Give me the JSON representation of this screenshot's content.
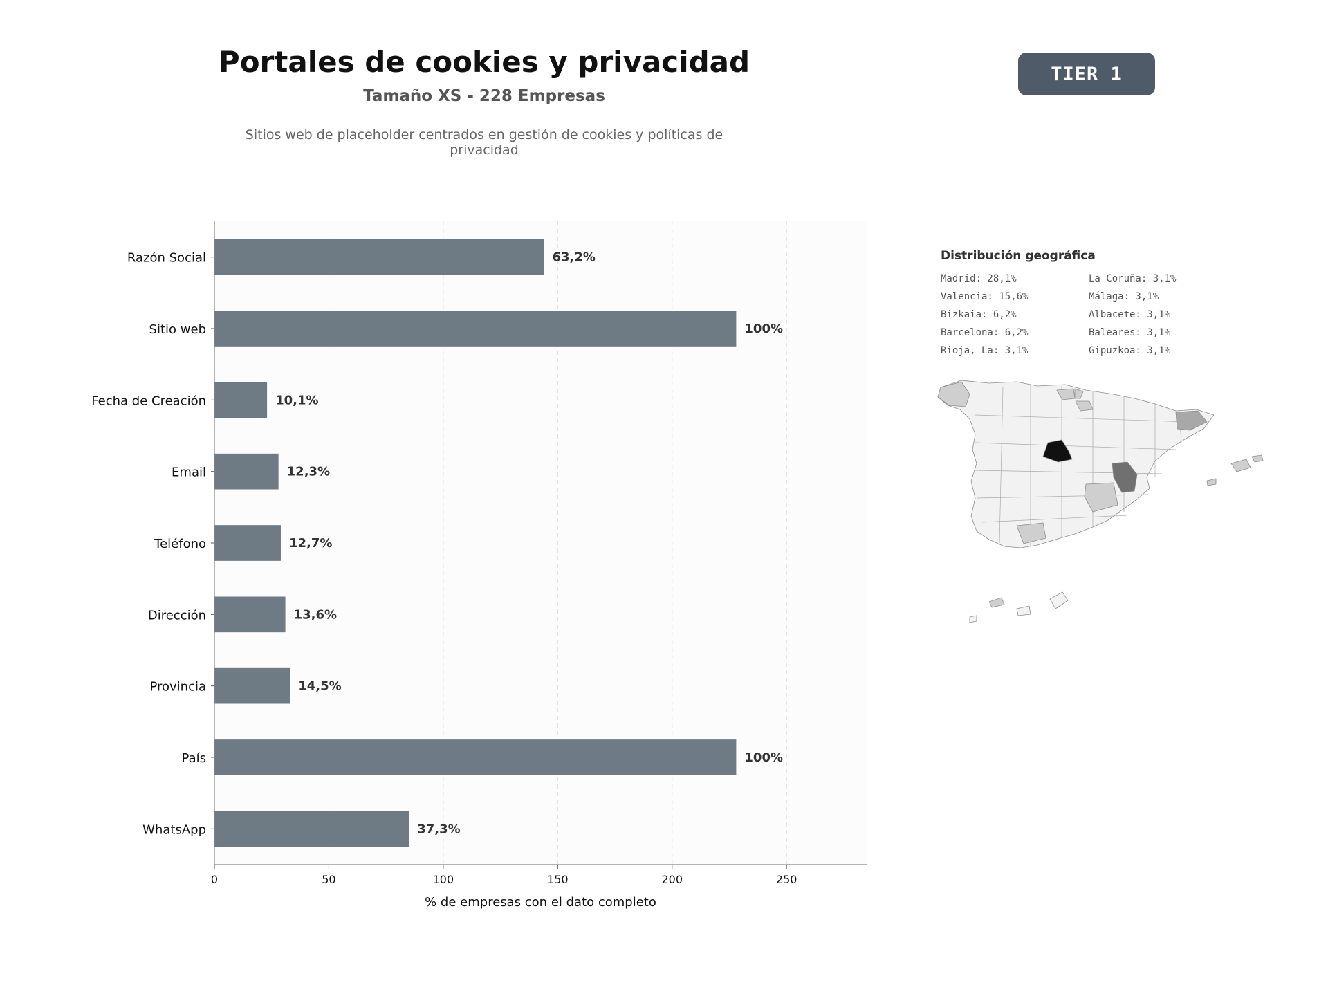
{
  "header": {
    "title": "Portales de cookies y privacidad",
    "subtitle": "Tamaño XS - 228 Empresas",
    "description": "Sitios web de placeholder centrados en gestión de cookies y políticas de privacidad",
    "badge": "TIER 1"
  },
  "chart_data": {
    "type": "bar",
    "orientation": "horizontal",
    "categories": [
      "Razón Social",
      "Sitio web",
      "Fecha de Creación",
      "Email",
      "Teléfono",
      "Dirección",
      "Provincia",
      "País",
      "WhatsApp"
    ],
    "values": [
      144,
      228,
      23,
      28,
      29,
      31,
      33,
      228,
      85
    ],
    "data_labels": [
      "63,2%",
      "100%",
      "10,1%",
      "12,3%",
      "12,7%",
      "13,6%",
      "14,5%",
      "100%",
      "37,3%"
    ],
    "xlabel": "% de empresas con el dato completo",
    "ylabel": "",
    "xlim": [
      0,
      285
    ],
    "xticks": [
      0,
      50,
      100,
      150,
      200,
      250
    ],
    "grid": "vertical-dashed",
    "bar_color": "#6e7a84"
  },
  "geo": {
    "title": "Distribución geográfica",
    "items": [
      "Madrid: 28,1%",
      "La Coruña: 3,1%",
      "Valencia: 15,6%",
      "Málaga: 3,1%",
      "Bizkaia: 6,2%",
      "Albacete: 3,1%",
      "Barcelona: 6,2%",
      "Baleares: 3,1%",
      "Rioja, La: 3,1%",
      "Gipuzkoa: 3,1%"
    ],
    "map_colors": {
      "base": "#f2f2f2",
      "madrid": "#111111",
      "valencia": "#707070",
      "mid": "#a8a8a8",
      "light": "#cfcfcf",
      "border": "#8c8c8c"
    }
  }
}
